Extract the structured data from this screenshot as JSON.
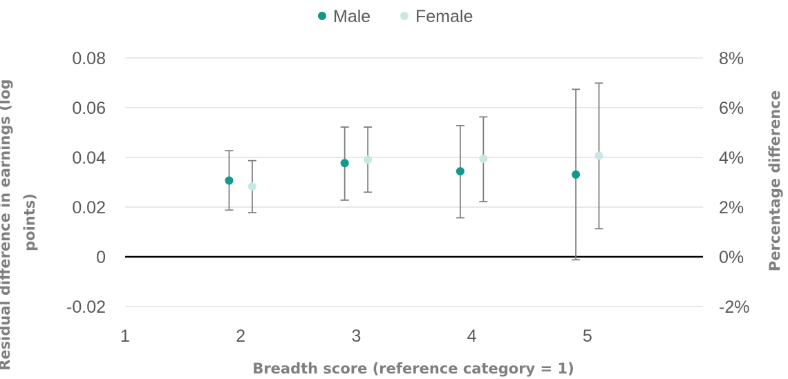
{
  "chart_data": {
    "type": "scatter",
    "xlabel": "Breadth score (reference category = 1)",
    "ylabel": "Residual difference in earnings (log points)",
    "y2label": "Percentage difference",
    "x_ticks": [
      "1",
      "2",
      "3",
      "4",
      "5"
    ],
    "y_ticks": [
      "0.08",
      "0.06",
      "0.04",
      "0.02",
      "0",
      "-0.02"
    ],
    "y2_ticks": [
      "8%",
      "6%",
      "4%",
      "2%",
      "0%",
      "-2%"
    ],
    "ylim": [
      -0.02,
      0.08
    ],
    "xlim": [
      1,
      6
    ],
    "grid": true,
    "legend": "top",
    "colors": {
      "male": "#12998a",
      "female": "#c8e8e3",
      "errorbar": "#7f7f7f",
      "zero_line": "#000000",
      "grid": "#d9d9d9"
    },
    "series": [
      {
        "name": "Male",
        "points": [
          {
            "x": 1.9,
            "y": 0.0307,
            "low": 0.0188,
            "high": 0.0427
          },
          {
            "x": 2.9,
            "y": 0.0377,
            "low": 0.0228,
            "high": 0.0522
          },
          {
            "x": 3.9,
            "y": 0.0344,
            "low": 0.0157,
            "high": 0.0528
          },
          {
            "x": 4.9,
            "y": 0.0331,
            "low": -0.0012,
            "high": 0.0674
          }
        ]
      },
      {
        "name": "Female",
        "points": [
          {
            "x": 2.1,
            "y": 0.0283,
            "low": 0.0178,
            "high": 0.0387
          },
          {
            "x": 3.1,
            "y": 0.0391,
            "low": 0.026,
            "high": 0.0522
          },
          {
            "x": 4.1,
            "y": 0.0394,
            "low": 0.0222,
            "high": 0.0563
          },
          {
            "x": 5.1,
            "y": 0.0407,
            "low": 0.0113,
            "high": 0.0699
          }
        ]
      }
    ]
  }
}
